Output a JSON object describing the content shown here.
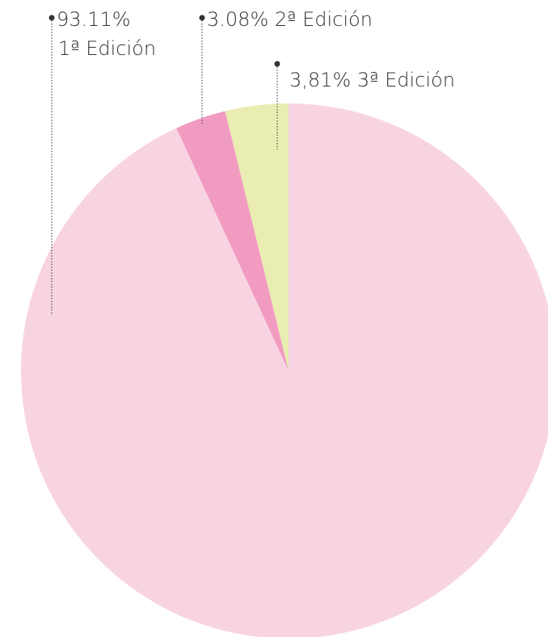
{
  "chart_data": {
    "type": "pie",
    "slices": [
      {
        "name": "1ª Edición",
        "value": 93.11,
        "percent_label": "93.11%",
        "color": "#f8d4e2"
      },
      {
        "name": "2ª Edición",
        "value": 3.08,
        "percent_label": "3.08%",
        "color": "#f29bc1"
      },
      {
        "name": "3ª Edición",
        "value": 3.81,
        "percent_label": "3,81%",
        "color": "#e9edb1"
      }
    ],
    "start_angle_deg": 0,
    "direction": "counterclockwise",
    "labels": {
      "first_line1": "93.11%",
      "first_line2": "1ª Edición",
      "second": "3.08% 2ª Edición",
      "third": "3,81%  3ª Edición"
    },
    "leader_color": "#333333",
    "background": "#ffffff"
  }
}
